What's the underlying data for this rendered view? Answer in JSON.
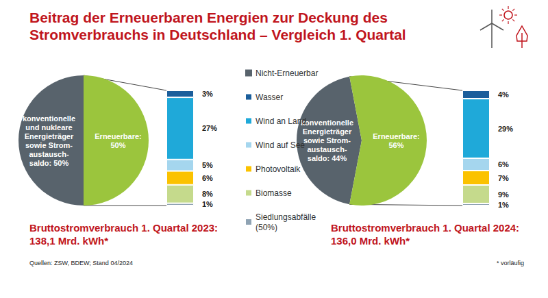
{
  "title": "Beitrag der Erneuerbaren Energien zur Deckung des\nStromverbrauchs in Deutschland – Vergleich 1. Quartal",
  "source": "Quellen: ZSW, BDEW; Stand 04/2024",
  "footnote": "* vorläufig",
  "chart_data": [
    {
      "type": "pie",
      "title": "Bruttostromverbrauch 1. Quartal 2023:\n138,1 Mrd. kWh*",
      "categories": [
        "Nicht-Erneuerbar",
        null
      ],
      "values": [
        50,
        50
      ],
      "value_labels": [
        "konventionelle\nund nukleare\nEnergieträger\nsowie Strom-\naustausch-\nsaldo: 50%",
        "Erneuerbare:\n50%"
      ],
      "colors": [
        "#58636c",
        "#9bc53d"
      ],
      "data_labels": true,
      "breakdown": {
        "type": "bar",
        "stacked": true,
        "data_labels": true,
        "tick_labels": false,
        "categories": [
          null
        ],
        "ylim": [
          0,
          50
        ],
        "series": [
          {
            "name": "Wasser",
            "color": "#1b5e9b",
            "values": [
              3
            ],
            "value_labels": [
              "3%"
            ]
          },
          {
            "name": "Wind an Land",
            "color": "#1fa9d9",
            "values": [
              27
            ],
            "value_labels": [
              "27%"
            ]
          },
          {
            "name": "Wind auf See",
            "color": "#a5d6ee",
            "values": [
              5
            ],
            "value_labels": [
              "5%"
            ]
          },
          {
            "name": "Photovoltaik",
            "color": "#fbc200",
            "values": [
              6
            ],
            "value_labels": [
              "6%"
            ]
          },
          {
            "name": "Biomasse",
            "color": "#c5da8c",
            "values": [
              8
            ],
            "value_labels": [
              "8%"
            ]
          },
          {
            "name": "Siedlungsabfälle (50%)",
            "color": "#8fa3b3",
            "values": [
              1
            ],
            "value_labels": [
              "1%"
            ]
          }
        ]
      }
    },
    {
      "type": "pie",
      "title": "Bruttostromverbrauch 1. Quartal 2024:\n136,0 Mrd. kWh*",
      "categories": [
        "Nicht-Erneuerbar",
        null
      ],
      "values": [
        44,
        56
      ],
      "value_labels": [
        "konventionelle\nEnergieträger\nsowie Strom-\naustausch-\nsaldo: 44%",
        "Erneuerbare:\n56%"
      ],
      "colors": [
        "#58636c",
        "#9bc53d"
      ],
      "data_labels": true,
      "breakdown": {
        "type": "bar",
        "stacked": true,
        "data_labels": true,
        "tick_labels": false,
        "categories": [
          null
        ],
        "ylim": [
          0,
          56
        ],
        "series": [
          {
            "name": "Wasser",
            "color": "#1b5e9b",
            "values": [
              4
            ],
            "value_labels": [
              "4%"
            ]
          },
          {
            "name": "Wind an Land",
            "color": "#1fa9d9",
            "values": [
              29
            ],
            "value_labels": [
              "29%"
            ]
          },
          {
            "name": "Wind auf See",
            "color": "#a5d6ee",
            "values": [
              6
            ],
            "value_labels": [
              "6%"
            ]
          },
          {
            "name": "Photovoltaik",
            "color": "#fbc200",
            "values": [
              7
            ],
            "value_labels": [
              "7%"
            ]
          },
          {
            "name": "Biomasse",
            "color": "#c5da8c",
            "values": [
              9
            ],
            "value_labels": [
              "9%"
            ]
          },
          {
            "name": "Siedlungsabfälle (50%)",
            "color": "#8fa3b3",
            "values": [
              1
            ],
            "value_labels": [
              "1%"
            ]
          }
        ]
      }
    }
  ]
}
